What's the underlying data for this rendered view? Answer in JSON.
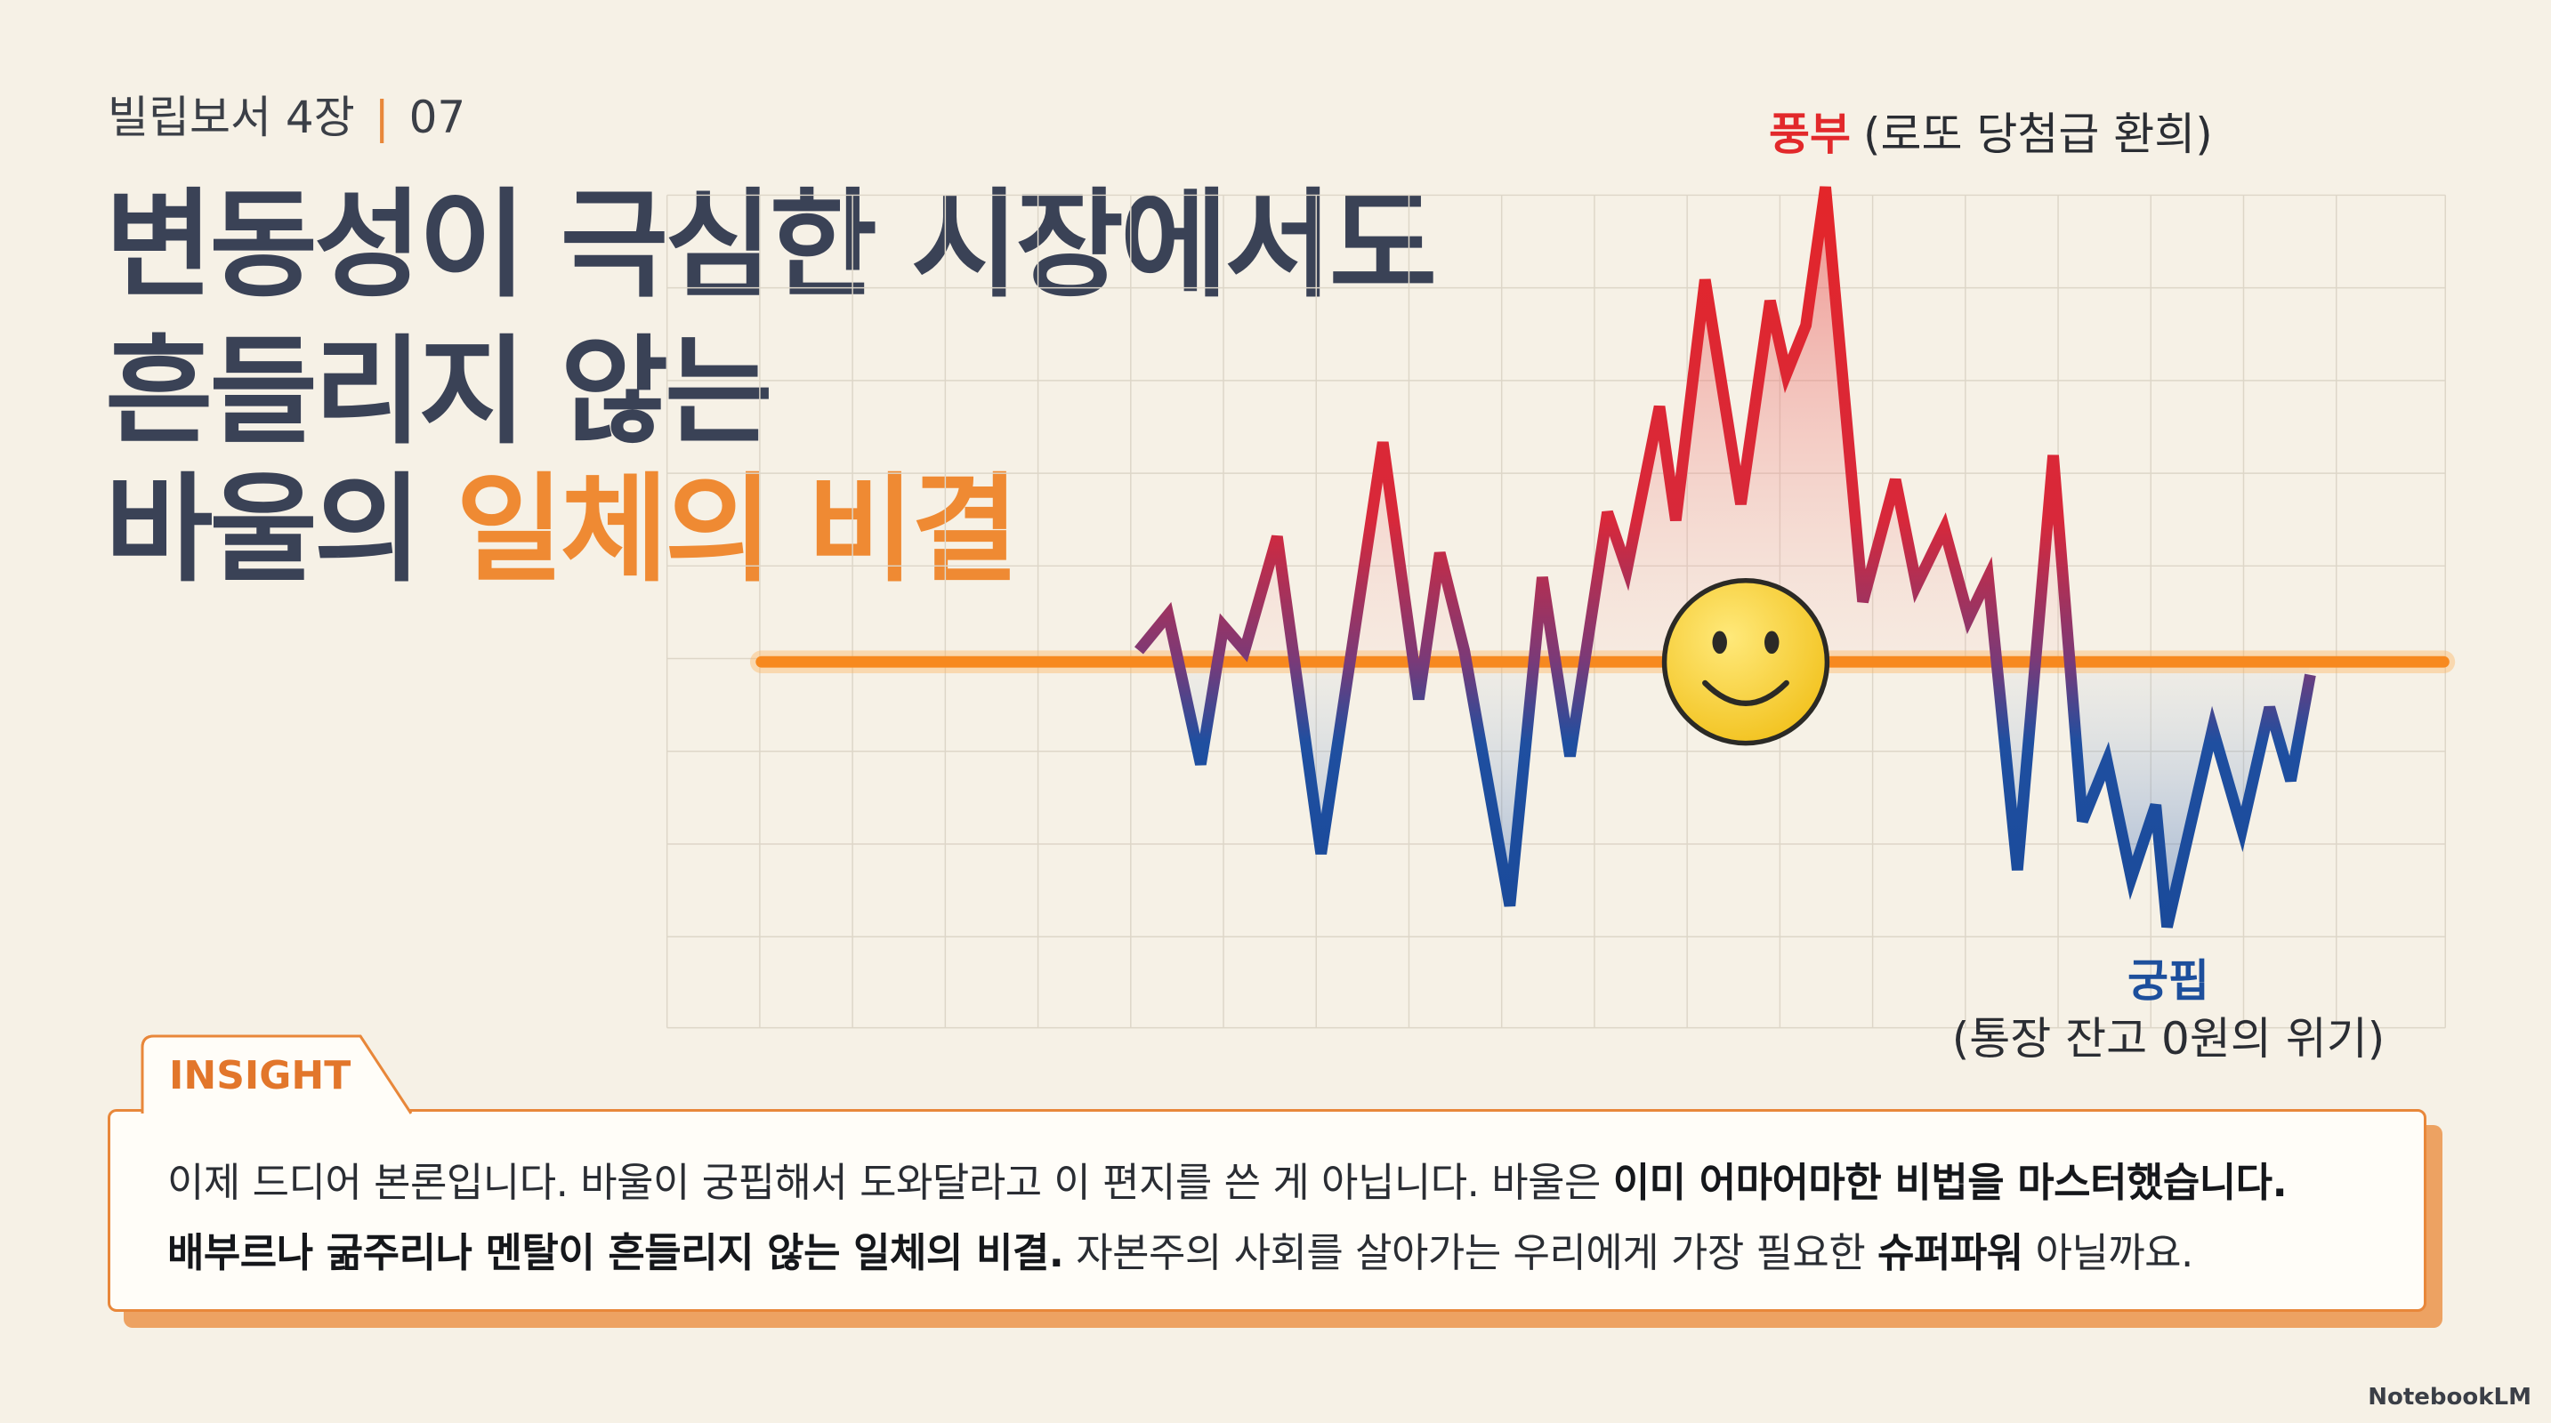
{
  "header": {
    "book": "빌립보서 4장",
    "number": "07"
  },
  "title": {
    "lines": [
      "변동성이 극심한 시장에서도",
      "흔들리지 않는"
    ],
    "last_line": [
      {
        "text": "바울의 ",
        "highlight": false
      },
      {
        "text": "일체의 비결",
        "highlight": true
      }
    ]
  },
  "chart": {
    "top_label": {
      "word": "풍부",
      "note": "(로또 당첨급 환희)"
    },
    "bottom_label": {
      "word": "궁핍",
      "note": "(통장 잔고 0원의 위기)"
    }
  },
  "insight": {
    "tag": "INSIGHT",
    "lines": [
      [
        {
          "text": "이제 드디어 본론입니다. 바울이 궁핍해서 도와달라고 이 편지를 쓴 게 아닙니다. 바울은 ",
          "bold": false
        },
        {
          "text": "이미 어마어마한 비법을 마스터했습니다.",
          "bold": true
        }
      ],
      [
        {
          "text": "배부르나 굶주리나 멘탈이 흔들리지 않는 일체의 비결.",
          "bold": true
        },
        {
          "text": " 자본주의 사회를 살아가는 우리에게 가장 필요한 ",
          "bold": false
        },
        {
          "text": "슈퍼파워",
          "bold": true
        },
        {
          "text": " 아닐까요.",
          "bold": false
        }
      ]
    ]
  },
  "brand": "NotebookLM"
}
